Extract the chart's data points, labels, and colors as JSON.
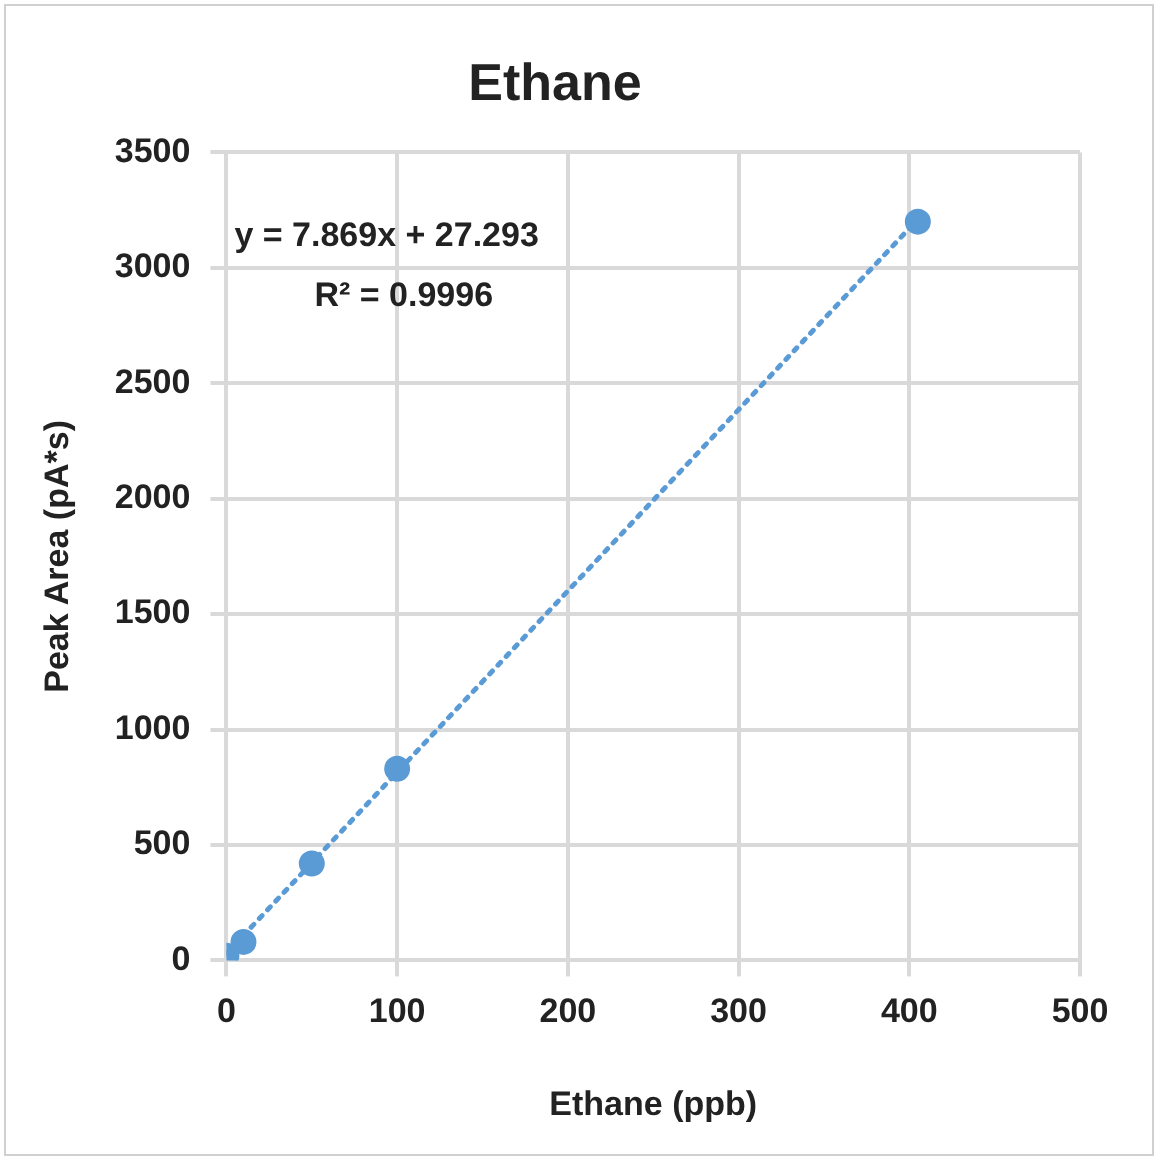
{
  "chart_data": {
    "type": "scatter",
    "title": "Ethane",
    "xlabel": "Ethane (ppb)",
    "ylabel": "Peak Area (pA*s)",
    "xlim": [
      0,
      500
    ],
    "xticks": [
      0,
      100,
      200,
      300,
      400,
      500
    ],
    "ylim": [
      0,
      3500
    ],
    "yticks": [
      0,
      500,
      1000,
      1500,
      2000,
      2500,
      3000,
      3500
    ],
    "grid": true,
    "legend": false,
    "marker": "circle",
    "series": [
      {
        "color": "#5b9bd5",
        "x": [
          0,
          10,
          50,
          100,
          405
        ],
        "values": [
          20,
          80,
          420,
          830,
          3200
        ]
      },
      {
        "type": "line",
        "color": "#5b9bd5",
        "line_style": "dotted",
        "marker": "none",
        "x": [
          0,
          405
        ],
        "values": [
          30,
          3210
        ]
      }
    ],
    "annotations": [
      "y = 7.869x + 27.293",
      "R² = 0.9996"
    ]
  }
}
